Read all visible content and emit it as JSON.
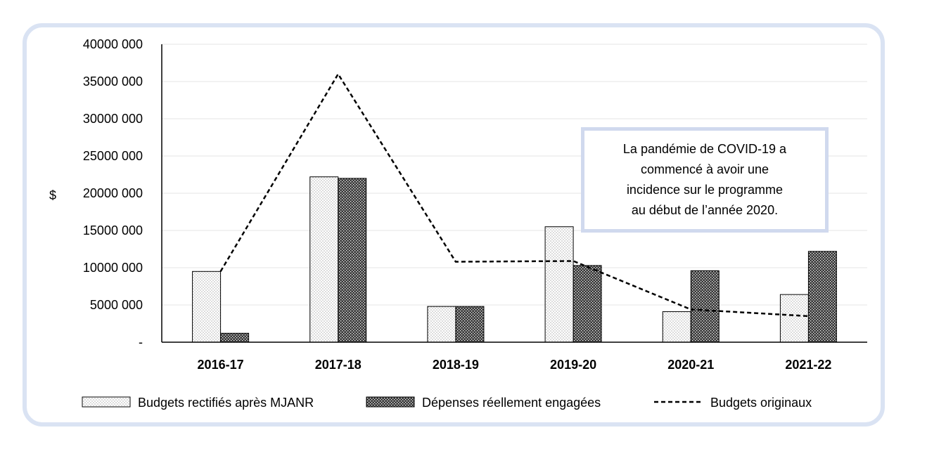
{
  "chart_data": {
    "type": "bar",
    "title": "",
    "xlabel": "",
    "ylabel": "$",
    "ylim": [
      0,
      40000000
    ],
    "categories": [
      "2016-17",
      "2017-18",
      "2018-19",
      "2019-20",
      "2020-21",
      "2021-22"
    ],
    "y_tick_labels": [
      "-",
      "5000 000",
      "10000 000",
      "15000 000",
      "20000 000",
      "25000 000",
      "30000 000",
      "35000 000",
      "40000 000"
    ],
    "series": [
      {
        "name": "Budgets rectifiés après MJANR",
        "kind": "bar",
        "pattern": "fine-dots",
        "values": [
          9500000,
          22200000,
          4800000,
          15500000,
          4100000,
          6400000
        ]
      },
      {
        "name": "Dépenses réellement engagées",
        "kind": "bar",
        "pattern": "dense-dark-dots",
        "values": [
          1200000,
          22000000,
          4800000,
          10300000,
          9600000,
          12200000
        ]
      },
      {
        "name": "Budgets originaux",
        "kind": "line",
        "style": "dashed",
        "values": [
          9500000,
          36000000,
          10800000,
          10900000,
          4400000,
          3500000
        ]
      }
    ],
    "annotation": "La pandémie de COVID-19 a\ncommencé à avoir une\nincidence sur le programme\nau début de l’année 2020.",
    "grid": true,
    "legend_position": "bottom"
  },
  "colors": {
    "frame": "#dae3f3",
    "annotation_border": "#d0d9ee",
    "grid": "#e6e6e6",
    "ink": "#000000"
  }
}
